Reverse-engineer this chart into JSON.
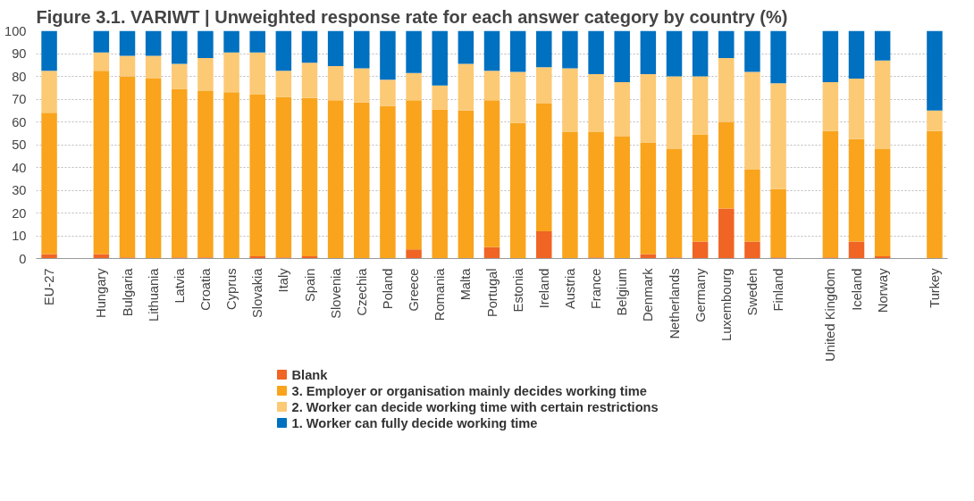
{
  "chart_data": {
    "type": "bar",
    "stacked": true,
    "title": "Figure 3.1. VARIWT | Unweighted response rate for each answer category by country (%)",
    "categories": [
      "EU-27",
      null,
      "Hungary",
      "Bulgaria",
      "Lithuania",
      "Latvia",
      "Croatia",
      "Cyprus",
      "Slovakia",
      "Italy",
      "Spain",
      "Slovenia",
      "Czechia",
      "Poland",
      "Greece",
      "Romania",
      "Malta",
      "Portugal",
      "Estonia",
      "Ireland",
      "Austria",
      "France",
      "Belgium",
      "Denmark",
      "Netherlands",
      "Germany",
      "Luxembourg",
      "Sweden",
      "Finland",
      null,
      "United Kingdom",
      "Iceland",
      "Norway",
      null,
      "Turkey"
    ],
    "series": [
      {
        "name": "Blank",
        "color": "#f06424",
        "values": [
          2,
          null,
          2,
          0.5,
          0,
          0.5,
          0.5,
          0,
          1,
          0.5,
          1,
          0,
          0,
          0,
          4,
          0,
          0,
          5,
          0,
          12,
          0,
          0.5,
          0,
          2,
          0.5,
          7.5,
          22,
          7.5,
          0.5,
          null,
          0.5,
          7.5,
          1,
          null,
          0
        ]
      },
      {
        "name": "3. Employer or organisation mainly decides working time",
        "color": "#f9a41c",
        "values": [
          62,
          null,
          80.5,
          79.5,
          79,
          74,
          73,
          73,
          71,
          70.5,
          69.5,
          69.5,
          68.5,
          67,
          65.5,
          65.5,
          65,
          64.5,
          59.5,
          56,
          55.5,
          55,
          53.5,
          49,
          47.5,
          47,
          38,
          31.5,
          30,
          null,
          55.5,
          45,
          47,
          null,
          56
        ]
      },
      {
        "name": "2. Worker can decide working time with certain restrictions",
        "color": "#fcc975",
        "values": [
          18.5,
          null,
          8,
          9,
          10,
          11,
          14.5,
          17.5,
          18.5,
          11.5,
          15.5,
          15,
          15,
          11.5,
          12,
          10.5,
          20.5,
          13,
          22.5,
          16,
          28,
          25.5,
          24,
          30,
          32,
          25.5,
          28,
          43,
          46.5,
          null,
          21.5,
          26.5,
          39,
          null,
          9
        ]
      },
      {
        "name": "1. Worker can fully decide working time",
        "color": "#0070c0",
        "values": [
          17.5,
          null,
          9.5,
          11,
          11,
          14.5,
          12,
          9.5,
          9.5,
          17.5,
          14,
          15.5,
          16.5,
          21.5,
          18.5,
          24,
          14.5,
          17.5,
          18,
          16,
          16.5,
          19,
          22.5,
          19,
          20,
          20,
          12,
          18,
          23,
          null,
          22.5,
          21,
          13,
          null,
          35
        ]
      }
    ],
    "ylim": [
      0,
      100
    ],
    "yticks": [
      0,
      10,
      20,
      30,
      40,
      50,
      60,
      70,
      80,
      90,
      100
    ],
    "grid": "y",
    "legend": "bottom"
  }
}
